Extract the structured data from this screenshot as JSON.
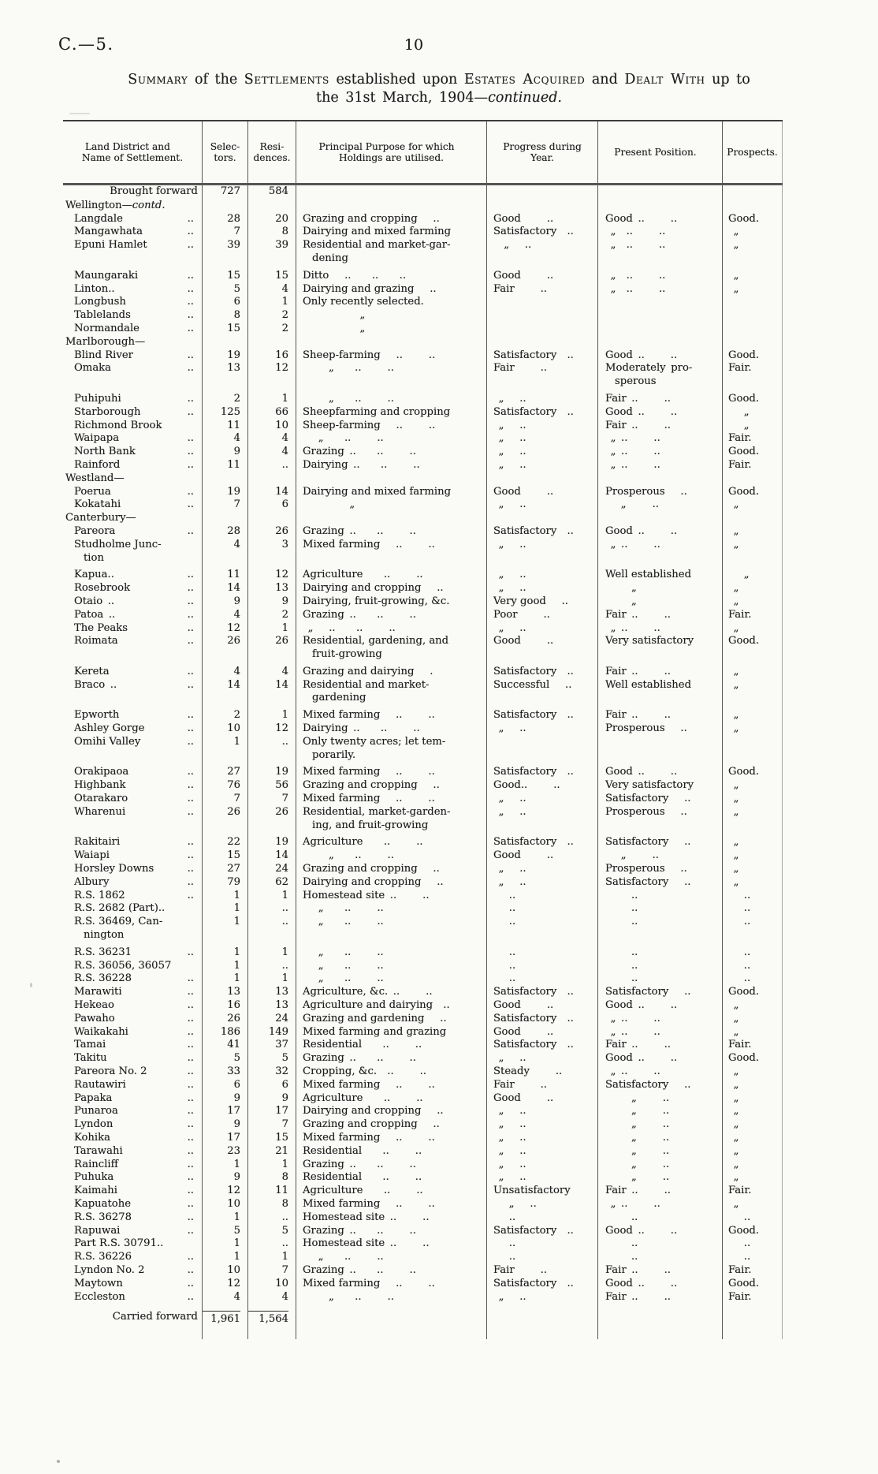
{
  "page": {
    "doc_ref": "C.—5.",
    "page_number": "10"
  },
  "title": {
    "parts": [
      {
        "text": "Summary",
        "sc": true
      },
      {
        "text": " of the ",
        "sc": false
      },
      {
        "text": "Settlements",
        "sc": true
      },
      {
        "text": " established upon ",
        "sc": false
      },
      {
        "text": "Estates Acquired",
        "sc": true
      },
      {
        "text": " and ",
        "sc": false
      },
      {
        "text": "Dealt With",
        "sc": true
      },
      {
        "text": " up to",
        "sc": false
      }
    ],
    "line2_prefix": "the 31st March, 1904—",
    "line2_italic": "continued."
  },
  "misc": {
    "leader": ".."
  },
  "table": {
    "headers": [
      "Land District and\nName of Settlement.",
      "Selec-\ntors.",
      "Resi-\ndences.",
      "Principal Purpose for which\nHoldings are utilised.",
      "Progress during\nYear.",
      "Present Position.",
      "Prospects."
    ]
  },
  "rows": [
    {
      "t": "sum",
      "name": "Brought forward",
      "sel": "727",
      "res": "584"
    },
    {
      "t": "grp",
      "name": "Wellington—",
      "it": "contd."
    },
    {
      "t": "r",
      "nd": 1,
      "name": "Langdale",
      "sel": "28",
      "res": "20",
      "purpose": "Grazing and cropping  ..",
      "progress": "Good   ..",
      "position": "Good ..   ..",
      "prospects": "Good."
    },
    {
      "t": "r",
      "nd": 1,
      "name": "Mangawhata",
      "sel": "7",
      "res": "8",
      "purpose": "Dairying and mixed farming",
      "progress": "Satisfactory  ..",
      "position": " „ ..   ..",
      "prospects": " „"
    },
    {
      "t": "r",
      "nd": 1,
      "name": "Epuni Hamlet",
      "sel": "39",
      "res": "39",
      "purpose": "Residential and market-gar-\ndening",
      "progress": "  „  ..",
      "position": " „ ..   ..",
      "prospects": " „"
    },
    {
      "t": "r",
      "nd": 1,
      "gap": 1,
      "name": "Maungaraki",
      "sel": "15",
      "res": "15",
      "purpose": "Ditto  ..  ..  ..",
      "progress": "Good   ..",
      "position": " „ ..   ..",
      "prospects": " „"
    },
    {
      "t": "r",
      "nd": 1,
      "name": "Linton..",
      "sel": "5",
      "res": "4",
      "purpose": "Dairying and grazing  ..",
      "progress": "Fair   ..",
      "position": " „ ..   ..",
      "prospects": " „"
    },
    {
      "t": "r",
      "nd": 1,
      "name": "Longbush",
      "sel": "6",
      "res": "1",
      "purpose": "Only recently selected."
    },
    {
      "t": "r",
      "nd": 1,
      "name": "Tablelands",
      "sel": "8",
      "res": "2",
      "purpose": "      „"
    },
    {
      "t": "r",
      "nd": 1,
      "name": "Normandale",
      "sel": "15",
      "res": "2",
      "purpose": "      „"
    },
    {
      "t": "grp",
      "name": "Marlborough—"
    },
    {
      "t": "r",
      "nd": 1,
      "name": "Blind River",
      "sel": "19",
      "res": "16",
      "purpose": "Sheep-farming  ..   ..",
      "progress": "Satisfactory  ..",
      "position": "Good ..   ..",
      "prospects": "Good."
    },
    {
      "t": "r",
      "nd": 1,
      "name": "Omaka",
      "sel": "13",
      "res": "12",
      "purpose": "   „  ..   ..",
      "progress": "Fair   ..",
      "position": "Moderately pro-\nsperous",
      "prospects": "Fair."
    },
    {
      "t": "r",
      "nd": 1,
      "gap": 1,
      "name": "Puhipuhi",
      "sel": "2",
      "res": "1",
      "purpose": "   „  ..   ..",
      "progress": " „  ..",
      "position": "Fair ..   ..",
      "prospects": "Good."
    },
    {
      "t": "r",
      "nd": 1,
      "name": "Starborough",
      "sel": "125",
      "res": "66",
      "purpose": "Sheepfarming and cropping",
      "progress": "Satisfactory  ..",
      "position": "Good ..   ..",
      "prospects": "  „"
    },
    {
      "t": "r",
      "name": "Richmond Brook",
      "sel": "11",
      "res": "10",
      "purpose": "Sheep-farming  ..   ..",
      "progress": " „  ..",
      "position": "Fair ..   ..",
      "prospects": "  „"
    },
    {
      "t": "r",
      "nd": 1,
      "name": "Waipapa",
      "sel": "4",
      "res": "4",
      "purpose": "  „  ..   ..",
      "progress": " „  ..",
      "position": " „ ..   ..",
      "prospects": "Fair."
    },
    {
      "t": "r",
      "nd": 1,
      "name": "North Bank",
      "sel": "9",
      "res": "4",
      "purpose": "Grazing ..  ..   ..",
      "progress": " „  ..",
      "position": " „ ..   ..",
      "prospects": "Good."
    },
    {
      "t": "r",
      "nd": 1,
      "name": "Rainford",
      "sel": "11",
      "res": "..",
      "purpose": "Dairying ..  ..   ..",
      "progress": " „  ..",
      "position": " „ ..   ..",
      "prospects": "Fair."
    },
    {
      "t": "grp",
      "name": "Westland—"
    },
    {
      "t": "r",
      "nd": 1,
      "name": "Poerua",
      "sel": "19",
      "res": "14",
      "purpose": "Dairying and mixed farming",
      "progress": "Good   ..",
      "position": "Prosperous  ..",
      "prospects": "Good."
    },
    {
      "t": "r",
      "nd": 1,
      "name": "Kokatahi",
      "sel": "7",
      "res": "6",
      "purpose": "     „",
      "progress": " „  ..",
      "position": "  „   ..",
      "prospects": " „"
    },
    {
      "t": "grp",
      "name": "Canterbury—"
    },
    {
      "t": "r",
      "nd": 1,
      "name": "Pareora",
      "sel": "28",
      "res": "26",
      "purpose": "Grazing ..  ..   ..",
      "progress": "Satisfactory  ..",
      "position": "Good ..   ..",
      "prospects": " „"
    },
    {
      "t": "r",
      "name": "Studholme Junc-\ntion",
      "sel": "4",
      "res": "3",
      "purpose": "Mixed farming  ..   ..",
      "progress": " „  ..",
      "position": " „ ..   ..",
      "prospects": " „"
    },
    {
      "t": "r",
      "nd": 1,
      "gap": 1,
      "name": "Kapua..",
      "sel": "11",
      "res": "12",
      "purpose": "Agriculture  ..   ..",
      "progress": " „  ..",
      "position": "Well established",
      "prospects": "  „"
    },
    {
      "t": "r",
      "nd": 1,
      "name": "Rosebrook",
      "sel": "14",
      "res": "13",
      "purpose": "Dairying and cropping  ..",
      "progress": " „  ..",
      "position": "   „",
      "prospects": " „"
    },
    {
      "t": "r",
      "nd": 1,
      "name": "Otaio ..",
      "sel": "9",
      "res": "9",
      "purpose": "Dairying, fruit-growing, &c.",
      "progress": "Very good  ..",
      "position": "   „",
      "prospects": " „"
    },
    {
      "t": "r",
      "nd": 1,
      "name": "Patoa ..",
      "sel": "4",
      "res": "2",
      "purpose": "Grazing ..  ..   ..",
      "progress": "Poor   ..",
      "position": "Fair ..   ..",
      "prospects": "Fair."
    },
    {
      "t": "r",
      "nd": 1,
      "name": "The Peaks",
      "sel": "12",
      "res": "1",
      "purpose": " „  ..  ..   ..",
      "progress": " „  ..",
      "position": " „ ..   ..",
      "prospects": " „"
    },
    {
      "t": "r",
      "nd": 1,
      "name": "Roimata",
      "sel": "26",
      "res": "26",
      "purpose": "Residential, gardening, and\nfruit-growing",
      "progress": "Good   ..",
      "position": "Very satisfactory",
      "prospects": "Good."
    },
    {
      "t": "r",
      "nd": 1,
      "gap": 1,
      "name": "Kereta",
      "sel": "4",
      "res": "4",
      "purpose": "Grazing and dairying  .",
      "progress": "Satisfactory  ..",
      "position": "Fair ..   ..",
      "prospects": " „"
    },
    {
      "t": "r",
      "nd": 1,
      "name": "Braco ..",
      "sel": "14",
      "res": "14",
      "purpose": "Residential and market-\ngardening",
      "progress": "Successful  ..",
      "position": "Well established",
      "prospects": " „"
    },
    {
      "t": "r",
      "nd": 1,
      "gap": 1,
      "name": "Epworth",
      "sel": "2",
      "res": "1",
      "purpose": "Mixed farming  ..   ..",
      "progress": "Satisfactory  ..",
      "position": "Fair ..   ..",
      "prospects": " „"
    },
    {
      "t": "r",
      "nd": 1,
      "name": "Ashley Gorge",
      "sel": "10",
      "res": "12",
      "purpose": "Dairying ..  ..   ..",
      "progress": " „  ..",
      "position": "Prosperous  ..",
      "prospects": " „"
    },
    {
      "t": "r",
      "nd": 1,
      "name": "Omihi Valley",
      "sel": "1",
      "res": "..",
      "purpose": "Only twenty acres; let tem-\nporarily."
    },
    {
      "t": "r",
      "nd": 1,
      "gap": 1,
      "name": "Orakipaoa",
      "sel": "27",
      "res": "19",
      "purpose": "Mixed farming  ..   ..",
      "progress": "Satisfactory  ..",
      "position": "Good ..   ..",
      "prospects": "Good."
    },
    {
      "t": "r",
      "nd": 1,
      "name": "Highbank",
      "sel": "76",
      "res": "56",
      "purpose": "Grazing and cropping  ..",
      "progress": "Good..   ..",
      "position": "Very satisfactory",
      "prospects": " „"
    },
    {
      "t": "r",
      "nd": 1,
      "name": "Otarakaro",
      "sel": "7",
      "res": "7",
      "purpose": "Mixed farming  ..   ..",
      "progress": " „  ..",
      "position": "Satisfactory  ..",
      "prospects": " „"
    },
    {
      "t": "r",
      "nd": 1,
      "name": "Wharenui",
      "sel": "26",
      "res": "26",
      "purpose": "Residential, market-garden-\ning, and fruit-growing",
      "progress": " „  ..",
      "position": "Prosperous  ..",
      "prospects": " „"
    },
    {
      "t": "r",
      "nd": 1,
      "gap": 1,
      "name": "Rakitairi",
      "sel": "22",
      "res": "19",
      "purpose": "Agriculture  ..   ..",
      "progress": "Satisfactory  ..",
      "position": "Satisfactory  ..",
      "prospects": " „"
    },
    {
      "t": "r",
      "nd": 1,
      "name": "Waiapi",
      "sel": "15",
      "res": "14",
      "purpose": "   „  ..   ..",
      "progress": "Good   ..",
      "position": "  „   ..",
      "prospects": " „"
    },
    {
      "t": "r",
      "nd": 1,
      "name": "Horsley Downs",
      "sel": "27",
      "res": "24",
      "purpose": "Grazing and cropping  ..",
      "progress": " „  ..",
      "position": "Prosperous  ..",
      "prospects": " „"
    },
    {
      "t": "r",
      "nd": 1,
      "name": "Albury",
      "sel": "79",
      "res": "62",
      "purpose": "Dairying and cropping  ..",
      "progress": " „  ..",
      "position": "Satisfactory  ..",
      "prospects": " „"
    },
    {
      "t": "r",
      "nd": 1,
      "name": "R.S. 1862",
      "sel": "1",
      "res": "1",
      "purpose": "Homestead site ..   ..",
      "progress": "  ..",
      "position": "   ..",
      "prospects": "  .."
    },
    {
      "t": "r",
      "name": "R.S. 2682 (Part)..",
      "sel": "1",
      "res": "..",
      "purpose": "  „  ..   ..",
      "progress": "  ..",
      "position": "   ..",
      "prospects": "  .."
    },
    {
      "t": "r",
      "name": "R.S. 36469, Can-\nnington",
      "sel": "1",
      "res": "..",
      "purpose": "  „  ..   ..",
      "progress": "  ..",
      "position": "   ..",
      "prospects": "  .."
    },
    {
      "t": "r",
      "nd": 1,
      "gap": 1,
      "name": "R.S. 36231",
      "sel": "1",
      "res": "1",
      "purpose": "  „  ..   ..",
      "progress": "  ..",
      "position": "   ..",
      "prospects": "  .."
    },
    {
      "t": "r",
      "name": "R.S. 36056, 36057",
      "sel": "1",
      "res": "..",
      "purpose": "  „  ..   ..",
      "progress": "  ..",
      "position": "   ..",
      "prospects": "  .."
    },
    {
      "t": "r",
      "nd": 1,
      "name": "R.S. 36228",
      "sel": "1",
      "res": "1",
      "purpose": "  „  ..   ..",
      "progress": "  ..",
      "position": "   ..",
      "prospects": "  .."
    },
    {
      "t": "r",
      "nd": 1,
      "name": "Marawiti",
      "sel": "13",
      "res": "13",
      "purpose": "Agriculture, &c. ..   ..",
      "progress": "Satisfactory  ..",
      "position": "Satisfactory  ..",
      "prospects": "Good."
    },
    {
      "t": "r",
      "nd": 1,
      "name": "Hekeao",
      "sel": "16",
      "res": "13",
      "purpose": "Agriculture and dairying  ..",
      "progress": "Good   ..",
      "position": "Good ..   ..",
      "prospects": " „"
    },
    {
      "t": "r",
      "nd": 1,
      "name": "Pawaho",
      "sel": "26",
      "res": "24",
      "purpose": "Grazing and gardening  ..",
      "progress": "Satisfactory  ..",
      "position": " „ ..   ..",
      "prospects": " „"
    },
    {
      "t": "r",
      "nd": 1,
      "name": "Waikakahi",
      "sel": "186",
      "res": "149",
      "purpose": "Mixed farming and grazing",
      "progress": "Good   ..",
      "position": " „ ..   ..",
      "prospects": " „"
    },
    {
      "t": "r",
      "nd": 1,
      "name": "Tamai",
      "sel": "41",
      "res": "37",
      "purpose": "Residential  ..   ..",
      "progress": "Satisfactory  ..",
      "position": "Fair ..   ..",
      "prospects": "Fair."
    },
    {
      "t": "r",
      "nd": 1,
      "name": "Takitu",
      "sel": "5",
      "res": "5",
      "purpose": "Grazing ..  ..   ..",
      "progress": " „  ..",
      "position": "Good ..   ..",
      "prospects": "Good."
    },
    {
      "t": "r",
      "nd": 1,
      "name": "Pareora No. 2",
      "sel": "33",
      "res": "32",
      "purpose": "Cropping, &c. ..   ..",
      "progress": "Steady   ..",
      "position": " „ ..   ..",
      "prospects": " „"
    },
    {
      "t": "r",
      "nd": 1,
      "name": "Rautawiri",
      "sel": "6",
      "res": "6",
      "purpose": "Mixed farming  ..   ..",
      "progress": "Fair   ..",
      "position": "Satisfactory  ..",
      "prospects": " „"
    },
    {
      "t": "r",
      "nd": 1,
      "name": "Papaka",
      "sel": "9",
      "res": "9",
      "purpose": "Agriculture  ..   ..",
      "progress": "Good   ..",
      "position": "   „   ..",
      "prospects": " „"
    },
    {
      "t": "r",
      "nd": 1,
      "name": "Punaroa",
      "sel": "17",
      "res": "17",
      "purpose": "Dairying and cropping  ..",
      "progress": " „  ..",
      "position": "   „   ..",
      "prospects": " „"
    },
    {
      "t": "r",
      "nd": 1,
      "name": "Lyndon",
      "sel": "9",
      "res": "7",
      "purpose": "Grazing and cropping  ..",
      "progress": " „  ..",
      "position": "   „   ..",
      "prospects": " „"
    },
    {
      "t": "r",
      "nd": 1,
      "name": "Kohika",
      "sel": "17",
      "res": "15",
      "purpose": "Mixed farming  ..   ..",
      "progress": " „  ..",
      "position": "   „   ..",
      "prospects": " „"
    },
    {
      "t": "r",
      "nd": 1,
      "name": "Tarawahi",
      "sel": "23",
      "res": "21",
      "purpose": "Residential  ..   ..",
      "progress": " „  ..",
      "position": "   „   ..",
      "prospects": " „"
    },
    {
      "t": "r",
      "nd": 1,
      "name": "Raincliff",
      "sel": "1",
      "res": "1",
      "purpose": "Grazing ..  ..   ..",
      "progress": " „  ..",
      "position": "   „   ..",
      "prospects": " „"
    },
    {
      "t": "r",
      "nd": 1,
      "name": "Puhuka",
      "sel": "9",
      "res": "8",
      "purpose": "Residential  ..   ..",
      "progress": " „  ..",
      "position": "   „   ..",
      "prospects": " „"
    },
    {
      "t": "r",
      "nd": 1,
      "name": "Kaimahi",
      "sel": "12",
      "res": "11",
      "purpose": "Agriculture  ..   ..",
      "progress": "Unsatisfactory",
      "position": "Fair ..   ..",
      "prospects": "Fair."
    },
    {
      "t": "r",
      "nd": 1,
      "name": "Kapuatohe",
      "sel": "10",
      "res": "8",
      "purpose": "Mixed farming  ..   ..",
      "progress": "  „  ..",
      "position": " „ ..   ..",
      "prospects": " „"
    },
    {
      "t": "r",
      "nd": 1,
      "name": "R.S. 36278",
      "sel": "1",
      "res": "..",
      "purpose": "Homestead site ..   ..",
      "progress": "  ..",
      "position": "   ..",
      "prospects": "  .."
    },
    {
      "t": "r",
      "nd": 1,
      "name": "Rapuwai",
      "sel": "5",
      "res": "5",
      "purpose": "Grazing ..  ..   ..",
      "progress": "Satisfactory  ..",
      "position": "Good ..   ..",
      "prospects": "Good."
    },
    {
      "t": "r",
      "name": "Part R.S. 30791..",
      "sel": "1",
      "res": "..",
      "purpose": "Homestead site ..   ..",
      "progress": "  ..",
      "position": "   ..",
      "prospects": "  .."
    },
    {
      "t": "r",
      "nd": 1,
      "name": "R.S. 36226",
      "sel": "1",
      "res": "1",
      "purpose": "  „  ..   ..",
      "progress": "  ..",
      "position": "   ..",
      "prospects": "  .."
    },
    {
      "t": "r",
      "nd": 1,
      "name": "Lyndon No. 2",
      "sel": "10",
      "res": "7",
      "purpose": "Grazing ..  ..   ..",
      "progress": "Fair   ..",
      "position": "Fair ..   ..",
      "prospects": "Fair."
    },
    {
      "t": "r",
      "nd": 1,
      "name": "Maytown",
      "sel": "12",
      "res": "10",
      "purpose": "Mixed farming  ..   ..",
      "progress": "Satisfactory  ..",
      "position": "Good ..   ..",
      "prospects": "Good."
    },
    {
      "t": "r",
      "nd": 1,
      "name": "Eccleston",
      "sel": "4",
      "res": "4",
      "purpose": "   „  ..   ..",
      "progress": " „  ..",
      "position": "Fair ..   ..",
      "prospects": "Fair."
    },
    {
      "t": "sum2",
      "name": "Carried forward",
      "sel": "1,961",
      "res": "1,564"
    }
  ]
}
